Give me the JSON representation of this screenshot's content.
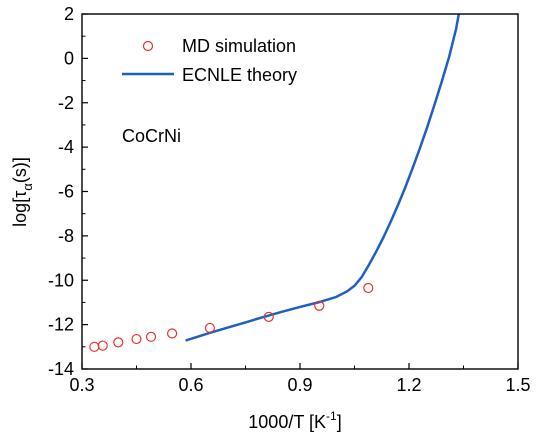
{
  "chart_data": {
    "type": "scatter",
    "xlabel": {
      "main": "1000/T [K",
      "sup": "-1",
      "end": "]"
    },
    "ylabel": {
      "main": "log[τ",
      "sub": "α",
      "end": "(s)]"
    },
    "xlim": [
      0.3,
      1.5
    ],
    "ylim": [
      -14,
      2
    ],
    "xticks": [
      0.3,
      0.6,
      0.9,
      1.2,
      1.5
    ],
    "xtick_labels": [
      "0.3",
      "0.6",
      "0.9",
      "1.2",
      "1.5"
    ],
    "yticks": [
      -14,
      -12,
      -10,
      -8,
      -6,
      -4,
      -2,
      0,
      2
    ],
    "ytick_labels": [
      "-14",
      "-12",
      "-10",
      "-8",
      "-6",
      "-4",
      "-2",
      "0",
      "2"
    ],
    "annotation": "CoCrNi",
    "legend_position": "top-left",
    "series": [
      {
        "name": "MD simulation",
        "kind": "scatter",
        "marker": "open-circle",
        "color": "#e8322b",
        "x": [
          0.334,
          0.357,
          0.4,
          0.45,
          0.49,
          0.548,
          0.652,
          0.814,
          0.953,
          1.088
        ],
        "y": [
          -13.0,
          -12.95,
          -12.8,
          -12.65,
          -12.55,
          -12.4,
          -12.15,
          -11.65,
          -11.15,
          -10.35
        ]
      },
      {
        "name": "ECNLE theory",
        "kind": "line",
        "color": "#1f5fbf",
        "x": [
          0.585,
          0.65,
          0.7,
          0.75,
          0.8,
          0.85,
          0.9,
          0.95,
          1.0,
          1.03,
          1.05,
          1.07,
          1.09,
          1.11,
          1.13,
          1.15,
          1.17,
          1.19,
          1.21,
          1.23,
          1.25,
          1.27,
          1.29,
          1.31,
          1.33,
          1.337
        ],
        "y": [
          -12.72,
          -12.38,
          -12.14,
          -11.9,
          -11.65,
          -11.42,
          -11.2,
          -11.0,
          -10.75,
          -10.5,
          -10.25,
          -9.85,
          -9.3,
          -8.7,
          -8.05,
          -7.35,
          -6.6,
          -5.8,
          -4.95,
          -4.05,
          -3.1,
          -2.1,
          -1.05,
          0.05,
          1.35,
          2.0
        ]
      }
    ]
  }
}
